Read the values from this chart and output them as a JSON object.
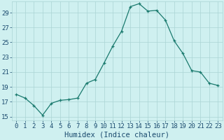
{
  "x": [
    0,
    1,
    2,
    3,
    4,
    5,
    6,
    7,
    8,
    9,
    10,
    11,
    12,
    13,
    14,
    15,
    16,
    17,
    18,
    19,
    20,
    21,
    22,
    23
  ],
  "y": [
    18.0,
    17.5,
    16.5,
    15.2,
    16.8,
    17.2,
    17.3,
    17.5,
    19.5,
    20.0,
    22.2,
    24.5,
    26.5,
    29.8,
    30.2,
    29.2,
    29.3,
    28.0,
    25.2,
    23.5,
    21.2,
    21.0,
    19.5,
    19.2
  ],
  "line_color": "#1a7a6e",
  "marker": "+",
  "marker_size": 3,
  "bg_color": "#cff0f0",
  "grid_color": "#aad4d4",
  "xlabel": "Humidex (Indice chaleur)",
  "xlim": [
    -0.5,
    23.5
  ],
  "ylim": [
    14.5,
    30.5
  ],
  "yticks": [
    15,
    17,
    19,
    21,
    23,
    25,
    27,
    29
  ],
  "xticks": [
    0,
    1,
    2,
    3,
    4,
    5,
    6,
    7,
    8,
    9,
    10,
    11,
    12,
    13,
    14,
    15,
    16,
    17,
    18,
    19,
    20,
    21,
    22,
    23
  ],
  "xtick_labels": [
    "0",
    "1",
    "2",
    "3",
    "4",
    "5",
    "6",
    "7",
    "8",
    "9",
    "10",
    "11",
    "12",
    "13",
    "14",
    "15",
    "16",
    "17",
    "18",
    "19",
    "20",
    "21",
    "22",
    "23"
  ],
  "font_color": "#1a4a6e",
  "tick_fontsize": 6.5,
  "label_fontsize": 7.5
}
